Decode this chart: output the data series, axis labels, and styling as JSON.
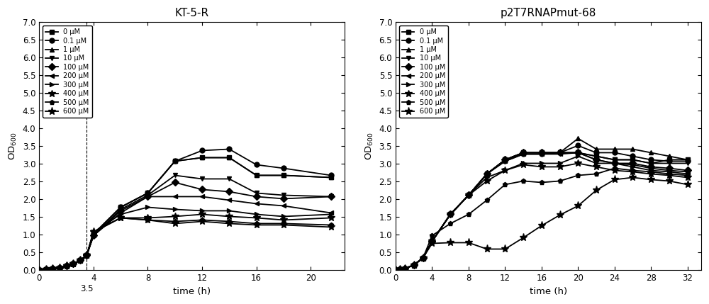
{
  "title1": "KT-5-R",
  "title2": "p2T7RNAPmut-68",
  "ylabel": "OD$_{600}$",
  "xlabel": "time (h)",
  "legend_labels": [
    "0 μM",
    "0.1 μM",
    "1 μM",
    "10 μM",
    "100 μM",
    "200 μM",
    "300 μM",
    "400 μM",
    "500 μM",
    "600 μM"
  ],
  "markers": [
    "s",
    "o",
    "^",
    "v",
    "D",
    "<",
    ">",
    "*",
    "p",
    "*"
  ],
  "marker_sizes": [
    5,
    5,
    5,
    5,
    5,
    5,
    5,
    7,
    5,
    8
  ],
  "ylim": [
    0.0,
    7.0
  ],
  "yticks": [
    0.0,
    0.5,
    1.0,
    1.5,
    2.0,
    2.5,
    3.0,
    3.5,
    4.0,
    4.5,
    5.0,
    5.5,
    6.0,
    6.5,
    7.0
  ],
  "color": "black",
  "linewidth": 1.3,
  "kt5r_x": [
    0,
    0.5,
    1,
    1.5,
    2,
    2.5,
    3,
    3.5,
    4,
    6,
    8,
    10,
    12,
    14,
    16,
    18,
    21.5
  ],
  "kt5r_data": [
    [
      0.01,
      0.02,
      0.04,
      0.07,
      0.12,
      0.18,
      0.28,
      0.42,
      1.02,
      1.78,
      2.18,
      3.08,
      3.18,
      3.18,
      2.68,
      2.68,
      2.62
    ],
    [
      0.01,
      0.02,
      0.04,
      0.07,
      0.12,
      0.18,
      0.28,
      0.42,
      1.02,
      1.78,
      2.18,
      3.08,
      3.38,
      3.42,
      2.98,
      2.88,
      2.68
    ],
    [
      0.01,
      0.02,
      0.04,
      0.07,
      0.12,
      0.18,
      0.28,
      0.42,
      1.02,
      1.78,
      2.18,
      3.08,
      3.18,
      3.18,
      2.68,
      2.68,
      2.62
    ],
    [
      0.01,
      0.02,
      0.04,
      0.07,
      0.12,
      0.18,
      0.28,
      0.42,
      0.98,
      1.72,
      2.12,
      2.68,
      2.58,
      2.58,
      2.18,
      2.12,
      2.08
    ],
    [
      0.01,
      0.02,
      0.04,
      0.07,
      0.12,
      0.18,
      0.28,
      0.42,
      0.98,
      1.68,
      2.08,
      2.48,
      2.28,
      2.22,
      2.08,
      2.02,
      2.08
    ],
    [
      0.01,
      0.02,
      0.04,
      0.07,
      0.12,
      0.18,
      0.28,
      0.42,
      0.98,
      1.62,
      2.08,
      2.08,
      2.08,
      1.98,
      1.88,
      1.82,
      1.62
    ],
    [
      0.01,
      0.02,
      0.04,
      0.07,
      0.12,
      0.18,
      0.28,
      0.42,
      1.08,
      1.58,
      1.78,
      1.72,
      1.68,
      1.68,
      1.58,
      1.52,
      1.58
    ],
    [
      0.01,
      0.02,
      0.04,
      0.07,
      0.12,
      0.18,
      0.28,
      0.42,
      1.08,
      1.48,
      1.48,
      1.52,
      1.58,
      1.52,
      1.48,
      1.42,
      1.48
    ],
    [
      0.01,
      0.02,
      0.04,
      0.07,
      0.12,
      0.18,
      0.28,
      0.42,
      1.08,
      1.48,
      1.42,
      1.38,
      1.42,
      1.38,
      1.32,
      1.32,
      1.28
    ],
    [
      0.01,
      0.02,
      0.04,
      0.07,
      0.12,
      0.18,
      0.28,
      0.42,
      1.08,
      1.48,
      1.42,
      1.32,
      1.38,
      1.32,
      1.28,
      1.28,
      1.22
    ]
  ],
  "p2t7_x": [
    0,
    0.5,
    1,
    2,
    3,
    4,
    6,
    8,
    10,
    12,
    14,
    16,
    18,
    20,
    22,
    24,
    26,
    28,
    30,
    32
  ],
  "p2t7_data": [
    [
      0.01,
      0.02,
      0.05,
      0.15,
      0.35,
      0.82,
      1.58,
      2.12,
      2.72,
      3.12,
      3.32,
      3.32,
      3.32,
      3.32,
      3.22,
      3.12,
      3.12,
      3.02,
      3.12,
      3.12
    ],
    [
      0.01,
      0.02,
      0.05,
      0.15,
      0.35,
      0.82,
      1.58,
      2.12,
      2.72,
      3.08,
      3.28,
      3.28,
      3.32,
      3.52,
      3.32,
      3.32,
      3.22,
      3.12,
      3.08,
      3.08
    ],
    [
      0.01,
      0.02,
      0.05,
      0.15,
      0.35,
      0.82,
      1.58,
      2.12,
      2.72,
      3.12,
      3.32,
      3.32,
      3.32,
      3.72,
      3.42,
      3.42,
      3.42,
      3.32,
      3.22,
      3.12
    ],
    [
      0.01,
      0.02,
      0.05,
      0.15,
      0.35,
      0.82,
      1.58,
      2.12,
      2.72,
      3.12,
      3.32,
      3.32,
      3.32,
      3.32,
      3.22,
      3.12,
      3.12,
      3.02,
      3.02,
      3.02
    ],
    [
      0.01,
      0.02,
      0.05,
      0.15,
      0.35,
      0.82,
      1.58,
      2.12,
      2.72,
      3.12,
      3.32,
      3.32,
      3.32,
      3.32,
      3.12,
      3.02,
      3.02,
      2.92,
      2.88,
      2.82
    ],
    [
      0.01,
      0.02,
      0.05,
      0.15,
      0.35,
      0.82,
      1.58,
      2.12,
      2.72,
      3.08,
      3.28,
      3.28,
      3.28,
      3.32,
      3.12,
      3.02,
      2.98,
      2.88,
      2.82,
      2.78
    ],
    [
      0.01,
      0.02,
      0.05,
      0.15,
      0.35,
      0.82,
      1.58,
      2.12,
      2.62,
      2.82,
      3.02,
      3.02,
      3.02,
      3.22,
      3.02,
      3.02,
      2.92,
      2.82,
      2.78,
      2.72
    ],
    [
      0.01,
      0.02,
      0.05,
      0.15,
      0.35,
      0.82,
      1.58,
      2.12,
      2.52,
      2.82,
      2.98,
      2.92,
      2.92,
      3.02,
      2.92,
      2.82,
      2.78,
      2.72,
      2.68,
      2.62
    ],
    [
      0.01,
      0.02,
      0.05,
      0.15,
      0.35,
      0.98,
      1.32,
      1.58,
      1.98,
      2.42,
      2.52,
      2.48,
      2.52,
      2.68,
      2.72,
      2.88,
      2.82,
      2.78,
      2.72,
      2.68
    ],
    [
      0.01,
      0.02,
      0.05,
      0.15,
      0.35,
      0.76,
      0.78,
      0.78,
      0.6,
      0.6,
      0.92,
      1.26,
      1.56,
      1.82,
      2.26,
      2.56,
      2.62,
      2.56,
      2.52,
      2.42
    ]
  ],
  "vline_x": 3.5,
  "xticks1": [
    0,
    4,
    8,
    12,
    16,
    20
  ],
  "xticklabels1": [
    "0",
    "4",
    "8",
    "12",
    "16",
    "20"
  ],
  "xlim1": [
    0,
    22.5
  ],
  "xticks2": [
    0,
    4,
    8,
    12,
    16,
    20,
    24,
    28,
    32
  ],
  "xticklabels2": [
    "0",
    "4",
    "8",
    "12",
    "16",
    "20",
    "24",
    "28",
    "32"
  ],
  "xlim2": [
    0,
    33.5
  ],
  "figsize": [
    10.0,
    4.29
  ],
  "dpi": 100,
  "fontsize_tick": 8.5,
  "fontsize_label": 9.5,
  "fontsize_title": 11,
  "fontsize_legend": 7
}
